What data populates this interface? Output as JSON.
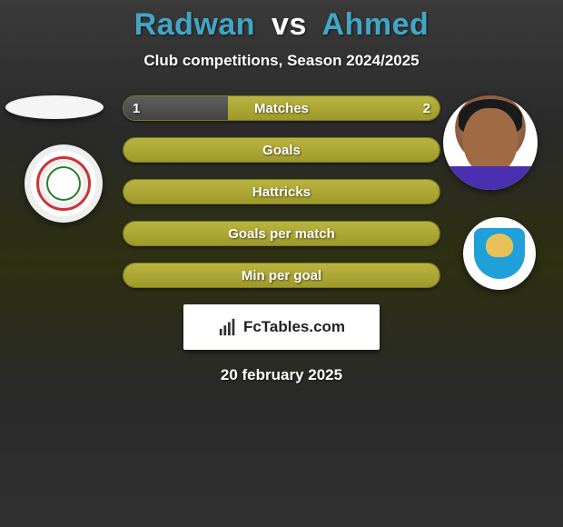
{
  "title": {
    "player1": "Radwan",
    "vs": "vs",
    "player2": "Ahmed",
    "player1_color": "#42a6c6",
    "player2_color": "#42a6c6"
  },
  "subtitle": "Club competitions, Season 2024/2025",
  "accent_bar_color": "#a6a034",
  "bars": [
    {
      "label": "Matches",
      "left": "1",
      "right": "2",
      "left_pct": 33,
      "show_values": true,
      "filled": false
    },
    {
      "label": "Goals",
      "left": "",
      "right": "",
      "left_pct": 50,
      "show_values": false,
      "filled": true
    },
    {
      "label": "Hattricks",
      "left": "",
      "right": "",
      "left_pct": 50,
      "show_values": false,
      "filled": true
    },
    {
      "label": "Goals per match",
      "left": "",
      "right": "",
      "left_pct": 50,
      "show_values": false,
      "filled": true
    },
    {
      "label": "Min per goal",
      "left": "",
      "right": "",
      "left_pct": 50,
      "show_values": false,
      "filled": true
    }
  ],
  "brand": "FcTables.com",
  "date": "20 february 2025"
}
